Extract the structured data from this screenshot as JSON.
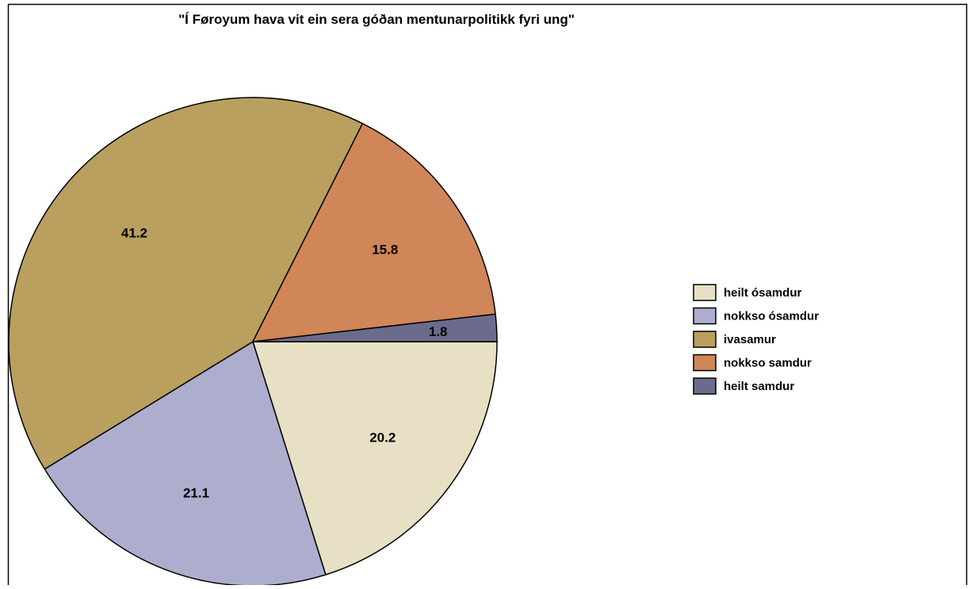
{
  "chart_data": {
    "type": "pie",
    "title": "\"Í Føroyum hava vit ein sera góðan mentunarpolitikk fyri ung\"",
    "slices": [
      {
        "label": "heilt ósamdur",
        "value": 20.2,
        "color": "#E8E0C4"
      },
      {
        "label": "nokkso ósamdur",
        "value": 21.1,
        "color": "#ADADCE"
      },
      {
        "label": "ivasamur",
        "value": 41.2,
        "color": "#B9A05F"
      },
      {
        "label": "nokkso samdur",
        "value": 15.8,
        "color": "#D08658"
      },
      {
        "label": "heilt samdur",
        "value": 1.8,
        "color": "#6B6C8D"
      }
    ],
    "start_angle_deg": 0,
    "direction": "clockwise",
    "legend_position": "right"
  }
}
